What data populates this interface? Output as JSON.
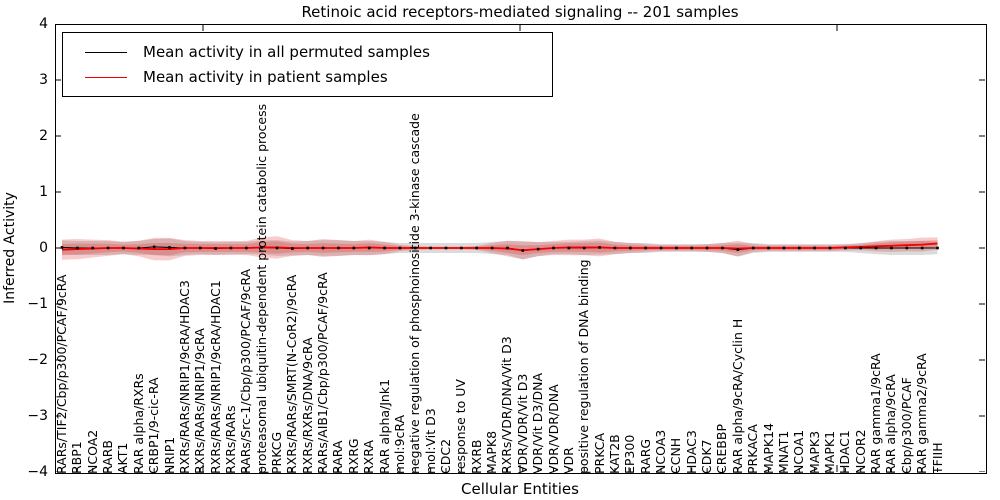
{
  "figure": {
    "title": "Retinoic acid receptors-mediated signaling -- 201 samples",
    "xlabel": "Cellular Entities",
    "ylabel": "Inferred Activity",
    "ytick_labels": [
      "4",
      "3",
      "2",
      "1",
      "0",
      "−1",
      "−2",
      "−3",
      "−4"
    ]
  },
  "chart_data": {
    "type": "line",
    "title": "Retinoic acid receptors-mediated signaling -- 201 samples",
    "xlabel": "Cellular Entities",
    "ylabel": "Inferred Activity",
    "ylim": [
      -4,
      4
    ],
    "yticks": [
      4,
      3,
      2,
      1,
      0,
      -1,
      -2,
      -3,
      -4
    ],
    "grid": false,
    "legend_position": "upper left",
    "x_tick_rotation": 90,
    "categories": [
      "RARs/TIF2/Cbp/p300/PCAF/9cRA",
      "RBP1",
      "NCOA2",
      "RARB",
      "AKT1",
      "RAR alpha/RXRs",
      "CRBP1/9-cic-RA",
      "NRIP1",
      "RXRs/RARs/NRIP1/9cRA/HDAC3",
      "RXRs/RARs/NRIP1/9cRA",
      "RXRs/RARs/NRIP1/9cRA/HDAC1",
      "RXRs/RARs",
      "RARs/Src-1/Cbp/p300/PCAF/9cRA",
      "proteasomal ubiquitin-dependent protein catabolic process",
      "PRKCG",
      "RXRs/RARs/SMRT(N-CoR2)/9cRA",
      "RXRs/RXRs/DNA/9cRA",
      "RARs/AIB1/Cbp/p300/PCAF/9cRA",
      "RARA",
      "RXRG",
      "RXRA",
      "RAR alpha/Jnk1",
      "mol:9cRA",
      "negative regulation of phosphoinositide 3-kinase cascade",
      "mol:Vit D3",
      "CDC2",
      "response to UV",
      "RXRB",
      "MAPK8",
      "RXRs/VDR/DNA/Vit D3",
      "VDR/VDR/Vit D3",
      "VDR/Vit D3/DNA",
      "VDR/VDR/DNA",
      "VDR",
      "positive regulation of DNA binding",
      "PRKCA",
      "KAT2B",
      "EP300",
      "RARG",
      "NCOA3",
      "CCNH",
      "HDAC3",
      "CDK7",
      "CREBBP",
      "RAR alpha/9cRA/Cyclin H",
      "PRKACA",
      "MAPK14",
      "MNAT1",
      "NCOA1",
      "MAPK3",
      "MAPK1",
      "HDAC1",
      "NCOR2",
      "RAR gamma1/9cRA",
      "RAR alpha/9cRA",
      "Cbp/p300/PCAF",
      "RAR gamma2/9cRA",
      "TFIIH"
    ],
    "series": [
      {
        "name": "Mean activity in all permuted samples",
        "color": "#000000",
        "band_color": "rgba(110,110,110,0.25)",
        "values": [
          0.01,
          0,
          0,
          0,
          0,
          0,
          0.02,
          0.01,
          0,
          0,
          -0.01,
          0,
          0,
          0.01,
          0,
          -0.01,
          0,
          0,
          0,
          0,
          0,
          0,
          0,
          0,
          0,
          0,
          0,
          0,
          0,
          0,
          -0.045,
          -0.02,
          0,
          0,
          0,
          0.01,
          0,
          0,
          0,
          0,
          0,
          0,
          0,
          0,
          -0.03,
          0,
          0,
          0,
          0,
          0,
          0,
          0,
          0,
          0,
          0,
          0,
          0,
          0
        ],
        "band_std": [
          0.125,
          0.125,
          0.125,
          0.125,
          0.11,
          0.125,
          0.14,
          0.16,
          0.125,
          0.11,
          0.11,
          0.11,
          0.11,
          0.125,
          0.14,
          0.125,
          0.125,
          0.14,
          0.14,
          0.125,
          0.125,
          0.11,
          0.09,
          0.09,
          0.09,
          0.09,
          0.09,
          0.09,
          0.11,
          0.125,
          0.16,
          0.125,
          0.11,
          0.11,
          0.125,
          0.125,
          0.11,
          0.09,
          0.09,
          0.07,
          0.07,
          0.07,
          0.07,
          0.09,
          0.125,
          0.09,
          0.07,
          0.07,
          0.07,
          0.07,
          0.07,
          0.07,
          0.09,
          0.11,
          0.125,
          0.125,
          0.125,
          0.11
        ]
      },
      {
        "name": "Mean activity in patient samples",
        "color": "#f00000",
        "band_color": "rgba(220,25,25,0.22)",
        "values": [
          -0.03,
          -0.02,
          -0.01,
          0,
          0,
          -0.01,
          -0.02,
          -0.02,
          0,
          0,
          0,
          0,
          0,
          0.01,
          0.01,
          0,
          0,
          0,
          0,
          0,
          0.01,
          0,
          0,
          0,
          0,
          0,
          0,
          0,
          0,
          -0.01,
          -0.04,
          -0.02,
          0,
          0.01,
          0.01,
          0.01,
          0,
          0,
          0,
          0,
          0,
          0,
          0,
          0,
          -0.01,
          0,
          0,
          0,
          0,
          0,
          0,
          0.01,
          0.02,
          0.03,
          0.04,
          0.05,
          0.06,
          0.08
        ],
        "band_std": [
          0.18,
          0.18,
          0.16,
          0.14,
          0.11,
          0.14,
          0.2,
          0.2,
          0.14,
          0.125,
          0.125,
          0.125,
          0.125,
          0.18,
          0.2,
          0.14,
          0.125,
          0.16,
          0.14,
          0.125,
          0.14,
          0.11,
          0.055,
          0.035,
          0.025,
          0.025,
          0.025,
          0.035,
          0.09,
          0.14,
          0.16,
          0.125,
          0.125,
          0.14,
          0.14,
          0.16,
          0.11,
          0.09,
          0.07,
          0.055,
          0.055,
          0.055,
          0.07,
          0.09,
          0.14,
          0.07,
          0.055,
          0.055,
          0.055,
          0.055,
          0.055,
          0.055,
          0.06,
          0.09,
          0.11,
          0.11,
          0.125,
          0.11
        ]
      }
    ]
  }
}
